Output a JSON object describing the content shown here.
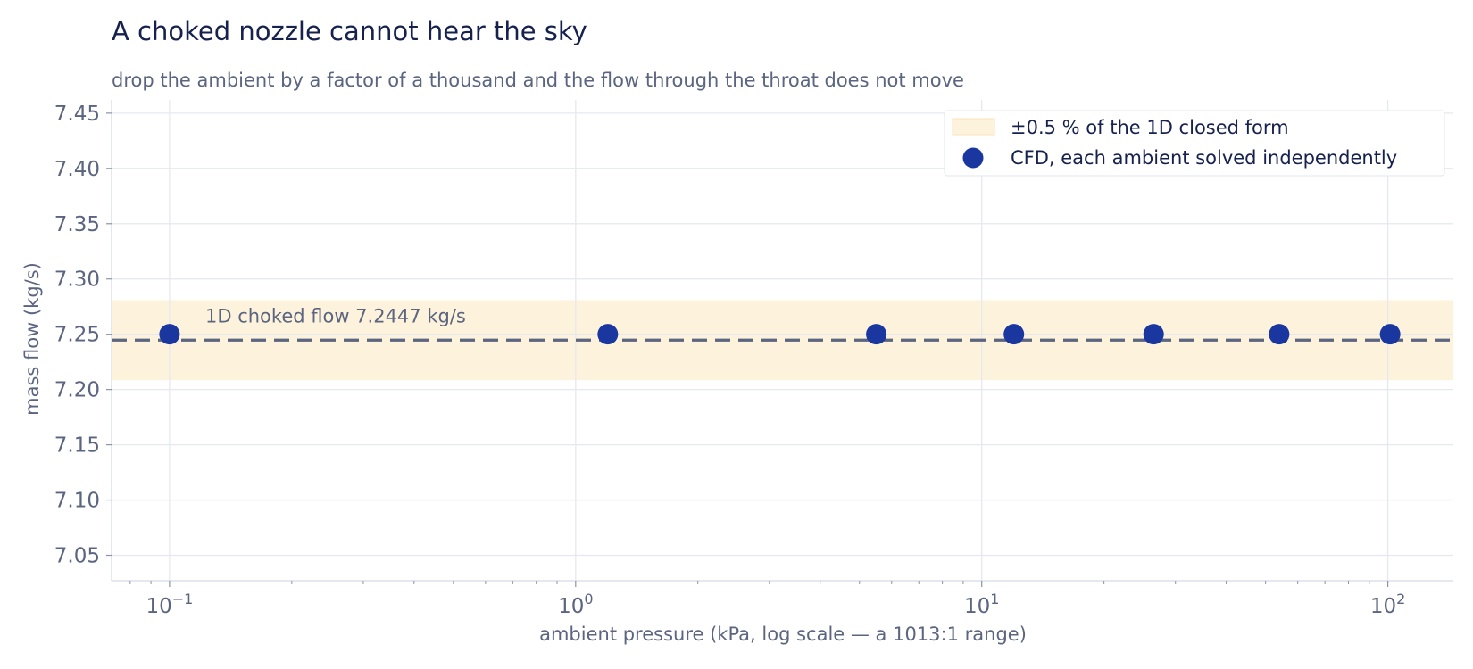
{
  "title": "A choked nozzle cannot hear the sky",
  "subtitle": "drop the ambient by a factor of a thousand and the flow through the throat does not move",
  "chart_data": {
    "type": "scatter",
    "xlabel": "ambient pressure  (kPa, log scale — a 1013:1 range)",
    "ylabel": "mass flow  (kg/s)",
    "x_scale": "log",
    "xlim": [
      0.072,
      145
    ],
    "ylim": [
      7.027,
      7.462
    ],
    "x_ticks": [
      {
        "value": 0.1,
        "base": "10",
        "exp": "−1"
      },
      {
        "value": 1,
        "base": "10",
        "exp": "0"
      },
      {
        "value": 10,
        "base": "10",
        "exp": "1"
      },
      {
        "value": 100,
        "base": "10",
        "exp": "2"
      }
    ],
    "y_ticks": [
      "7.05",
      "7.10",
      "7.15",
      "7.20",
      "7.25",
      "7.30",
      "7.35",
      "7.40",
      "7.45"
    ],
    "grid": true,
    "legend_position": "top-right",
    "series": [
      {
        "name": "CFD, each ambient solved independently",
        "color": "#1a37a0",
        "x": [
          0.1,
          1.2,
          5.5,
          12,
          26.5,
          54,
          101.3
        ],
        "y": [
          7.25,
          7.25,
          7.25,
          7.25,
          7.25,
          7.25,
          7.25
        ]
      }
    ],
    "reference_line": {
      "y": 7.2447,
      "label": "1D choked flow  7.2447 kg/s",
      "color": "#5b6580",
      "style": "dashed"
    },
    "band": {
      "center": 7.2447,
      "half_width_pct": 0.5,
      "label": "±0.5 % of the 1D closed form",
      "color": "#fdf3dd"
    }
  }
}
